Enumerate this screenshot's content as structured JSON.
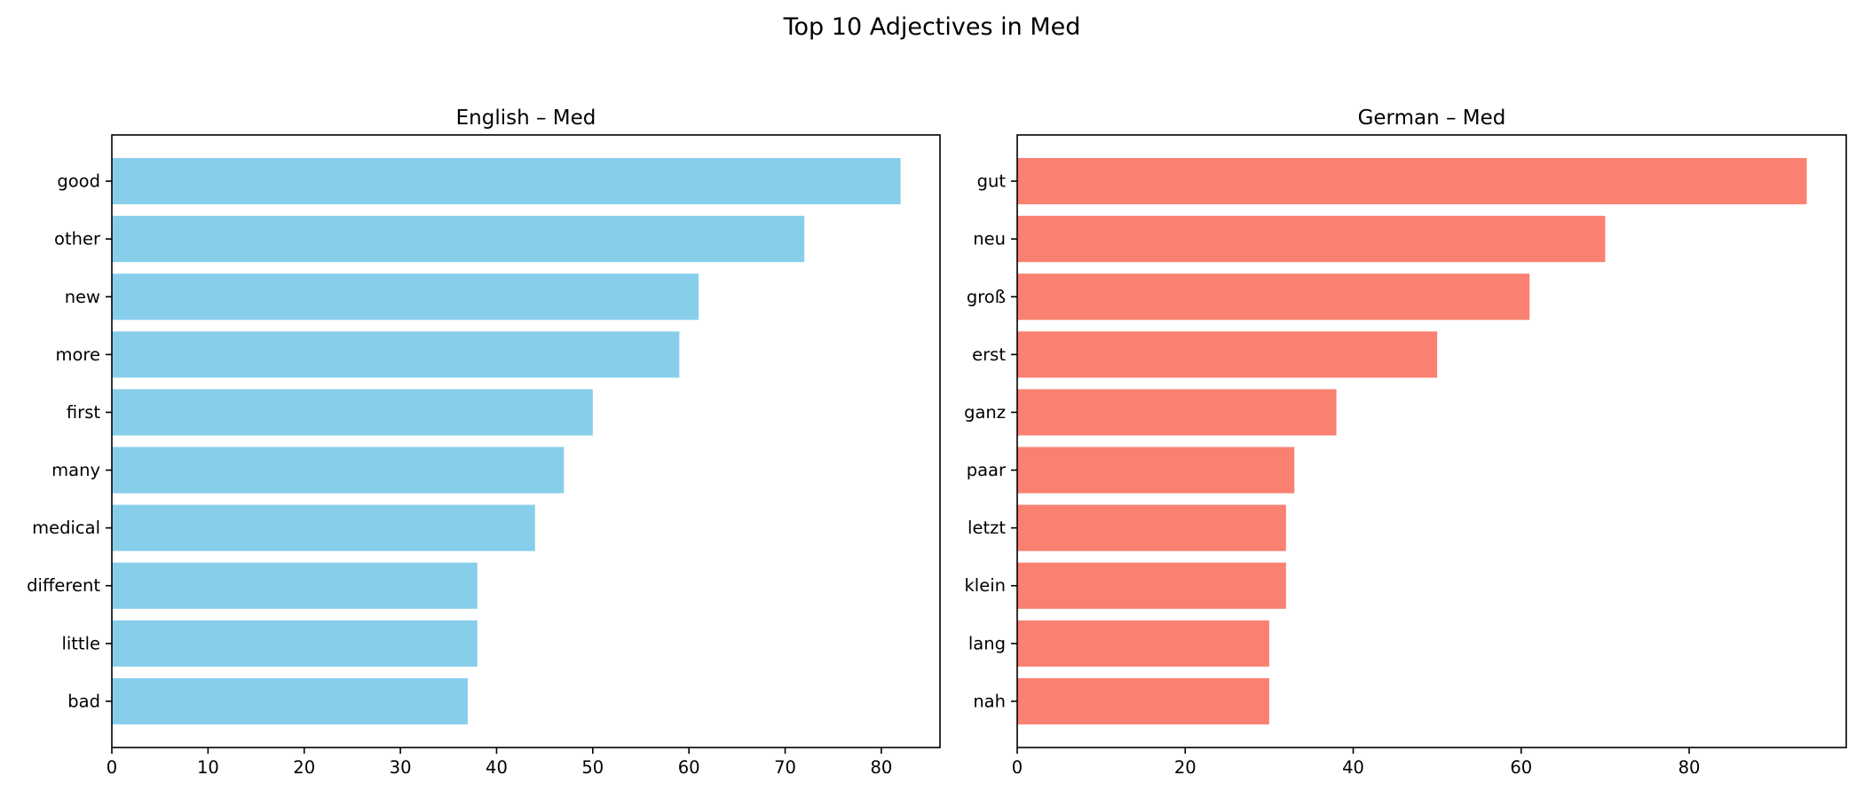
{
  "figure": {
    "title": "Top 10 Adjectives in Med"
  },
  "chart_data": [
    {
      "type": "bar",
      "orientation": "horizontal",
      "title": "English – Med",
      "xlabel": "",
      "ylabel": "",
      "categories": [
        "good",
        "other",
        "new",
        "more",
        "first",
        "many",
        "medical",
        "different",
        "little",
        "bad"
      ],
      "values": [
        82,
        72,
        61,
        59,
        50,
        47,
        44,
        38,
        38,
        37
      ],
      "xlim": [
        0,
        86.1
      ],
      "xticks": [
        0,
        10,
        20,
        30,
        40,
        50,
        60,
        70,
        80
      ],
      "color": "#87ceeb",
      "grid": false
    },
    {
      "type": "bar",
      "orientation": "horizontal",
      "title": "German – Med",
      "xlabel": "",
      "ylabel": "",
      "categories": [
        "gut",
        "neu",
        "groß",
        "erst",
        "ganz",
        "paar",
        "letzt",
        "klein",
        "lang",
        "nah"
      ],
      "values": [
        94,
        70,
        61,
        50,
        38,
        33,
        32,
        32,
        30,
        30
      ],
      "xlim": [
        0,
        98.7
      ],
      "xticks": [
        0,
        20,
        40,
        60,
        80
      ],
      "color": "#fa8072",
      "grid": false
    }
  ]
}
